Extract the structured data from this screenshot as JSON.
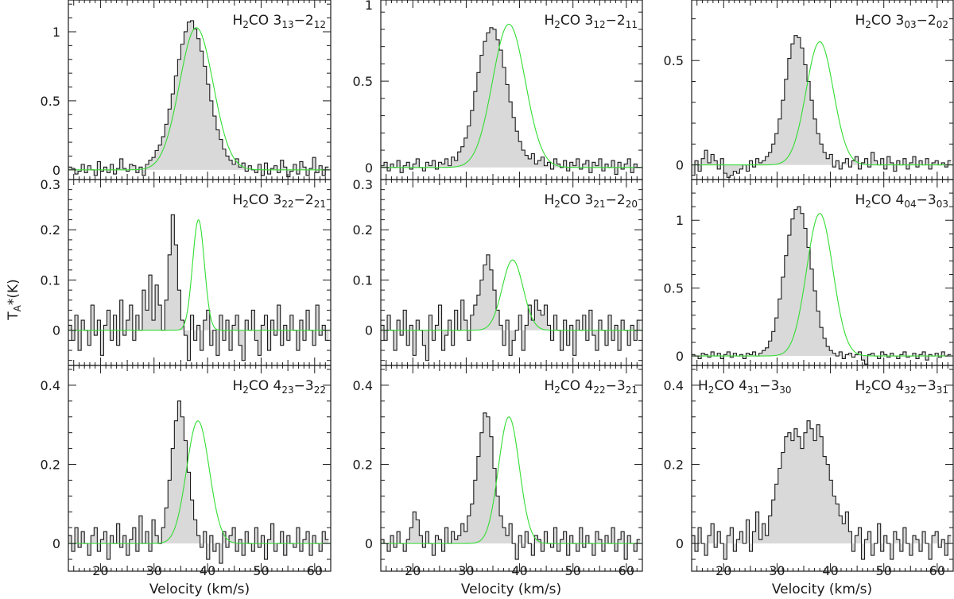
{
  "figure": {
    "ylabel": "T",
    "ylabel_sub": "A",
    "ylabel_tail": "*(K)",
    "xlabel": "Velocity (km/s)"
  },
  "colors": {
    "spectrum_fill": "#d9d9d9",
    "spectrum_line": "#1a1a1a",
    "fit": "#33dd33"
  },
  "chart_data": [
    {
      "type": "line",
      "title_main": "H2CO 313-212",
      "label": {
        "pre": "H",
        "s1": "2",
        "mid": "CO 3",
        "s2": "13",
        "dash": "−2",
        "s3": "12"
      },
      "xlim": [
        14,
        63
      ],
      "ylim": [
        -0.07,
        1.23
      ],
      "yticks": [
        0,
        0.5,
        1
      ],
      "ytick_labels": [
        "0",
        "0.5",
        "1"
      ],
      "xticks": [
        20,
        30,
        40,
        50,
        60
      ],
      "xtick_labels": [
        "",
        "",
        "",
        "",
        ""
      ],
      "fit": {
        "peak": 1.03,
        "center": 37.9,
        "fwhm": 7.4
      },
      "spectrum": {
        "x0": 14,
        "dx": 0.6,
        "y": [
          0.02,
          0.01,
          -0.03,
          -0.01,
          0.04,
          -0.02,
          0.03,
          0.0,
          -0.04,
          0.06,
          -0.01,
          0.02,
          -0.02,
          0.04,
          -0.03,
          0.01,
          0.08,
          0.01,
          -0.01,
          0.04,
          0.03,
          -0.02,
          0.02,
          -0.04,
          0.04,
          0.07,
          0.09,
          0.14,
          0.18,
          0.24,
          0.33,
          0.44,
          0.55,
          0.68,
          0.8,
          0.91,
          1.0,
          1.07,
          1.08,
          1.02,
          0.95,
          0.86,
          0.75,
          0.62,
          0.5,
          0.39,
          0.29,
          0.22,
          0.15,
          0.1,
          0.07,
          0.04,
          0.08,
          0.02,
          0.05,
          -0.01,
          0.03,
          0.0,
          -0.02,
          0.04,
          -0.04,
          0.05,
          -0.03,
          0.01,
          0.03,
          -0.02,
          0.07,
          0.02,
          -0.05,
          -0.01,
          0.04,
          -0.03,
          0.06,
          0.02,
          -0.04,
          0.01,
          0.09,
          -0.02,
          0.03,
          -0.04,
          0.02
        ]
      }
    },
    {
      "type": "line",
      "title_main": "H2CO 312-211",
      "label": {
        "pre": "H",
        "s1": "2",
        "mid": "CO 3",
        "s2": "12",
        "dash": "−2",
        "s3": "11"
      },
      "xlim": [
        14,
        63
      ],
      "ylim": [
        -0.07,
        0.97
      ],
      "yticks": [
        0,
        0.5,
        1
      ],
      "ytick_labels": [
        "0",
        "0.5",
        "1"
      ],
      "xticks": [
        20,
        30,
        40,
        50,
        60
      ],
      "xtick_labels": [
        "",
        "",
        "",
        "",
        ""
      ],
      "fit": {
        "peak": 0.83,
        "center": 38.0,
        "fwhm": 7.2
      },
      "spectrum": {
        "x0": 14,
        "dx": 0.6,
        "y": [
          0.01,
          0.03,
          -0.02,
          0.02,
          0.0,
          0.04,
          -0.03,
          0.01,
          0.03,
          -0.01,
          0.02,
          0.05,
          0.0,
          -0.02,
          0.03,
          0.01,
          0.04,
          -0.01,
          0.03,
          0.02,
          0.05,
          0.01,
          0.06,
          0.04,
          0.09,
          0.12,
          0.17,
          0.24,
          0.33,
          0.44,
          0.55,
          0.65,
          0.73,
          0.78,
          0.81,
          0.8,
          0.74,
          0.68,
          0.58,
          0.48,
          0.38,
          0.29,
          0.21,
          0.15,
          0.1,
          0.07,
          0.05,
          0.08,
          0.02,
          0.04,
          0.06,
          0.01,
          0.03,
          -0.01,
          0.05,
          0.02,
          0.0,
          0.04,
          -0.02,
          0.03,
          0.01,
          0.05,
          -0.01,
          0.02,
          0.04,
          -0.03,
          0.03,
          0.01,
          0.05,
          -0.02,
          0.02,
          0.0,
          0.04,
          -0.04,
          0.03,
          -0.01,
          0.02,
          0.05,
          -0.03,
          0.02,
          0.0
        ]
      }
    },
    {
      "type": "line",
      "title_main": "H2CO 303-202",
      "label": {
        "pre": "H",
        "s1": "2",
        "mid": "CO 3",
        "s2": "03",
        "dash": "−2",
        "s3": "02"
      },
      "xlim": [
        14,
        63
      ],
      "ylim": [
        -0.07,
        0.79
      ],
      "yticks": [
        0,
        0.5
      ],
      "ytick_labels": [
        "0",
        "0.5"
      ],
      "xticks": [
        20,
        30,
        40,
        50,
        60
      ],
      "xtick_labels": [
        "",
        "",
        "",
        "",
        ""
      ],
      "fit": {
        "peak": 0.59,
        "center": 38.0,
        "fwhm": 6.0
      },
      "spectrum": {
        "x0": 14,
        "dx": 0.6,
        "y": [
          -0.05,
          0.02,
          -0.03,
          0.03,
          0.07,
          0.01,
          0.05,
          0.02,
          -0.02,
          0.03,
          -0.04,
          -0.06,
          -0.05,
          -0.03,
          -0.04,
          -0.02,
          0.0,
          -0.03,
          0.02,
          -0.01,
          0.03,
          0.01,
          0.02,
          0.04,
          0.06,
          0.1,
          0.15,
          0.22,
          0.31,
          0.41,
          0.51,
          0.58,
          0.62,
          0.61,
          0.56,
          0.48,
          0.4,
          0.31,
          0.22,
          0.15,
          0.1,
          0.06,
          0.03,
          0.05,
          -0.01,
          0.02,
          -0.02,
          0.01,
          0.03,
          -0.01,
          0.02,
          0.04,
          -0.02,
          0.01,
          0.03,
          -0.01,
          0.06,
          0.02,
          0.0,
          0.03,
          -0.02,
          0.04,
          0.01,
          -0.03,
          0.02,
          0.0,
          0.03,
          -0.02,
          0.01,
          0.04,
          -0.01,
          0.02,
          0.0,
          0.03,
          -0.02,
          0.01,
          0.02,
          0.0,
          0.01,
          -0.01,
          0.02
        ]
      }
    },
    {
      "type": "line",
      "title_main": "H2CO 322-221",
      "label": {
        "pre": "H",
        "s1": "2",
        "mid": "CO 3",
        "s2": "22",
        "dash": "−2",
        "s3": "21"
      },
      "xlim": [
        14,
        63
      ],
      "ylim": [
        -0.07,
        0.3
      ],
      "yticks": [
        0,
        0.1,
        0.2,
        0.3
      ],
      "ytick_labels": [
        "0",
        "0.1",
        "0.2",
        "0.3"
      ],
      "xticks": [
        20,
        30,
        40,
        50,
        60
      ],
      "xtick_labels": [
        "",
        "",
        "",
        "",
        ""
      ],
      "fit": {
        "peak": 0.22,
        "center": 38.3,
        "fwhm": 2.6
      },
      "spectrum": {
        "x0": 14,
        "dx": 0.6,
        "y": [
          0.01,
          -0.02,
          0.03,
          -0.04,
          0.02,
          0.0,
          -0.03,
          0.05,
          -0.01,
          0.02,
          -0.05,
          0.01,
          0.04,
          -0.02,
          0.03,
          -0.03,
          0.06,
          -0.01,
          0.02,
          0.05,
          -0.02,
          0.03,
          0.0,
          0.08,
          0.04,
          0.11,
          0.02,
          0.09,
          0.05,
          0.0,
          0.06,
          0.15,
          0.23,
          0.17,
          0.08,
          0.02,
          -0.01,
          -0.06,
          0.03,
          -0.02,
          0.01,
          -0.04,
          0.02,
          0.04,
          -0.03,
          0.0,
          -0.05,
          0.03,
          -0.02,
          0.02,
          -0.04,
          0.01,
          0.03,
          -0.03,
          -0.06,
          0.02,
          0.0,
          0.04,
          -0.02,
          -0.05,
          0.01,
          0.03,
          -0.04,
          0.02,
          -0.01,
          0.05,
          -0.03,
          0.01,
          -0.02,
          0.03,
          0.0,
          -0.04,
          0.02,
          -0.02,
          0.04,
          0.0,
          -0.03,
          0.05,
          -0.01,
          0.01,
          -0.02
        ]
      }
    },
    {
      "type": "line",
      "title_main": "H2CO 321-220",
      "label": {
        "pre": "H",
        "s1": "2",
        "mid": "CO 3",
        "s2": "21",
        "dash": "−2",
        "s3": "20"
      },
      "xlim": [
        14,
        63
      ],
      "ylim": [
        -0.07,
        0.3
      ],
      "yticks": [
        0,
        0.1,
        0.2,
        0.3
      ],
      "ytick_labels": [
        "0",
        "0.1",
        "0.2",
        "0.3"
      ],
      "xticks": [
        20,
        30,
        40,
        50,
        60
      ],
      "xtick_labels": [
        "",
        "",
        "",
        "",
        ""
      ],
      "fit": {
        "peak": 0.14,
        "center": 38.7,
        "fwhm": 4.6
      },
      "spectrum": {
        "x0": 14,
        "dx": 0.6,
        "y": [
          0.01,
          -0.02,
          0.03,
          0.0,
          -0.04,
          0.02,
          -0.01,
          0.04,
          -0.03,
          0.01,
          -0.05,
          0.02,
          0.0,
          -0.03,
          -0.06,
          0.03,
          -0.02,
          0.01,
          0.05,
          -0.04,
          -0.01,
          0.02,
          -0.03,
          0.04,
          0.0,
          0.06,
          0.02,
          -0.02,
          0.03,
          0.05,
          0.07,
          0.1,
          0.13,
          0.15,
          0.12,
          0.08,
          0.04,
          0.01,
          -0.03,
          0.02,
          -0.05,
          -0.02,
          0.0,
          0.03,
          -0.04,
          0.01,
          0.05,
          0.02,
          0.06,
          0.04,
          0.03,
          0.05,
          0.01,
          -0.02,
          0.03,
          0.0,
          -0.04,
          0.02,
          -0.03,
          0.01,
          -0.05,
          0.02,
          0.0,
          0.03,
          -0.02,
          0.04,
          -0.01,
          -0.04,
          0.02,
          0.0,
          -0.03,
          0.03,
          -0.02,
          0.01,
          -0.04,
          0.02,
          0.0,
          -0.03,
          0.01,
          -0.02,
          0.02
        ]
      }
    },
    {
      "type": "line",
      "title_main": "H2CO 404-303",
      "label": {
        "pre": "H",
        "s1": "2",
        "mid": "CO 4",
        "s2": "04",
        "dash": "−3",
        "s3": "03"
      },
      "xlim": [
        14,
        63
      ],
      "ylim": [
        -0.07,
        1.3
      ],
      "yticks": [
        0,
        0.5,
        1
      ],
      "ytick_labels": [
        "0",
        "0.5",
        "1"
      ],
      "xticks": [
        20,
        30,
        40,
        50,
        60
      ],
      "xtick_labels": [
        "",
        "",
        "",
        "",
        ""
      ],
      "fit": {
        "peak": 1.05,
        "center": 38.0,
        "fwhm": 5.8
      },
      "spectrum": {
        "x0": 14,
        "dx": 0.6,
        "y": [
          0.01,
          0.0,
          -0.02,
          0.02,
          0.01,
          -0.01,
          0.03,
          0.0,
          0.02,
          -0.02,
          0.01,
          0.03,
          -0.01,
          0.02,
          0.0,
          0.01,
          -0.02,
          0.02,
          0.01,
          0.03,
          0.0,
          0.02,
          0.04,
          0.06,
          0.11,
          0.18,
          0.28,
          0.42,
          0.58,
          0.74,
          0.89,
          1.01,
          1.08,
          1.1,
          1.05,
          0.94,
          0.8,
          0.64,
          0.48,
          0.33,
          0.21,
          0.13,
          0.07,
          0.04,
          0.02,
          0.0,
          0.03,
          -0.02,
          0.01,
          0.02,
          -0.01,
          0.01,
          0.03,
          -0.03,
          -0.06,
          0.01,
          0.02,
          0.0,
          -0.02,
          0.03,
          0.01,
          -0.01,
          0.02,
          0.0,
          -0.02,
          0.01,
          0.03,
          -0.01,
          0.0,
          0.02,
          -0.02,
          0.01,
          0.03,
          -0.03,
          0.01,
          0.0,
          0.02,
          -0.01,
          0.03,
          0.0,
          0.01
        ]
      }
    },
    {
      "type": "line",
      "title_main": "H2CO 423-322",
      "label": {
        "pre": "H",
        "s1": "2",
        "mid": "CO 4",
        "s2": "23",
        "dash": "−3",
        "s3": "22"
      },
      "xlim": [
        14,
        63
      ],
      "ylim": [
        -0.07,
        0.45
      ],
      "yticks": [
        0,
        0.2,
        0.4
      ],
      "ytick_labels": [
        "0",
        "0.2",
        "0.4"
      ],
      "xticks": [
        20,
        30,
        40,
        50,
        60
      ],
      "xtick_labels": [
        "20",
        "30",
        "40",
        "50",
        "60"
      ],
      "fit": {
        "peak": 0.31,
        "center": 38.2,
        "fwhm": 5.0
      },
      "spectrum": {
        "x0": 14,
        "dx": 0.6,
        "y": [
          0.02,
          -0.02,
          0.04,
          -0.01,
          0.03,
          0.0,
          -0.03,
          0.02,
          0.04,
          -0.02,
          0.01,
          0.03,
          -0.04,
          0.02,
          0.0,
          0.05,
          -0.01,
          0.02,
          -0.03,
          0.01,
          0.04,
          -0.02,
          0.07,
          0.0,
          0.03,
          -0.02,
          0.06,
          0.02,
          0.0,
          0.04,
          0.09,
          0.16,
          0.24,
          0.31,
          0.36,
          0.32,
          0.26,
          0.18,
          0.11,
          0.06,
          0.02,
          -0.01,
          0.03,
          -0.04,
          0.02,
          -0.02,
          0.0,
          -0.05,
          0.03,
          -0.01,
          0.02,
          0.04,
          -0.02,
          0.01,
          -0.03,
          0.03,
          0.0,
          -0.02,
          0.04,
          -0.01,
          0.02,
          -0.04,
          0.01,
          0.05,
          -0.02,
          0.0,
          0.03,
          -0.03,
          0.02,
          0.0,
          -0.01,
          0.04,
          -0.02,
          0.01,
          0.03,
          -0.03,
          0.02,
          0.0,
          -0.02,
          0.03,
          0.01
        ]
      }
    },
    {
      "type": "line",
      "title_main": "H2CO 422-321",
      "label": {
        "pre": "H",
        "s1": "2",
        "mid": "CO 4",
        "s2": "22",
        "dash": "−3",
        "s3": "21"
      },
      "xlim": [
        14,
        63
      ],
      "ylim": [
        -0.07,
        0.45
      ],
      "yticks": [
        0,
        0.2,
        0.4
      ],
      "ytick_labels": [
        "0",
        "0.2",
        "0.4"
      ],
      "xticks": [
        20,
        30,
        40,
        50,
        60
      ],
      "xtick_labels": [
        "20",
        "30",
        "40",
        "50",
        "60"
      ],
      "fit": {
        "peak": 0.32,
        "center": 38.0,
        "fwhm": 4.6
      },
      "spectrum": {
        "x0": 14,
        "dx": 0.6,
        "y": [
          0.01,
          0.0,
          -0.02,
          0.02,
          -0.01,
          0.03,
          0.0,
          -0.02,
          0.01,
          0.04,
          0.08,
          0.06,
          0.02,
          -0.01,
          0.03,
          0.0,
          -0.03,
          0.02,
          0.01,
          -0.02,
          0.04,
          0.0,
          0.03,
          0.01,
          0.02,
          0.05,
          0.03,
          0.07,
          0.1,
          0.16,
          0.22,
          0.28,
          0.33,
          0.32,
          0.27,
          0.19,
          0.12,
          0.07,
          0.04,
          0.02,
          0.05,
          0.0,
          -0.04,
          0.02,
          -0.01,
          0.03,
          0.0,
          -0.03,
          0.02,
          0.01,
          -0.02,
          0.03,
          0.0,
          -0.01,
          0.04,
          -0.02,
          0.01,
          0.03,
          -0.03,
          0.02,
          0.0,
          -0.02,
          0.04,
          -0.01,
          0.02,
          0.0,
          -0.03,
          0.03,
          0.01,
          -0.02,
          0.02,
          0.0,
          0.04,
          -0.02,
          0.01,
          0.03,
          -0.04,
          0.02,
          0.0,
          -0.02,
          0.01
        ]
      }
    },
    {
      "type": "line",
      "title_main": "H2CO 431-330 H2CO 432-331",
      "label": {
        "pre": "H",
        "s1": "2",
        "mid": "CO 4",
        "s2": "31",
        "dash": "−3",
        "s3": "30"
      },
      "label2": {
        "pre": "H",
        "s1": "2",
        "mid": "CO 4",
        "s2": "32",
        "dash": "−3",
        "s3": "31"
      },
      "xlim": [
        14,
        63
      ],
      "ylim": [
        -0.07,
        0.45
      ],
      "yticks": [
        0,
        0.2,
        0.4
      ],
      "ytick_labels": [
        "0",
        "0.2",
        "0.4"
      ],
      "xticks": [
        20,
        30,
        40,
        50,
        60
      ],
      "xtick_labels": [
        "20",
        "30",
        "40",
        "50",
        "60"
      ],
      "fit": null,
      "spectrum": {
        "x0": 14,
        "dx": 0.6,
        "y": [
          0.02,
          -0.02,
          0.04,
          0.0,
          -0.03,
          0.02,
          0.05,
          -0.01,
          0.03,
          0.0,
          -0.04,
          0.02,
          0.04,
          -0.02,
          0.01,
          0.03,
          0.0,
          0.06,
          -0.02,
          0.03,
          0.08,
          0.01,
          0.05,
          0.02,
          0.07,
          0.11,
          0.15,
          0.19,
          0.23,
          0.27,
          0.28,
          0.26,
          0.29,
          0.27,
          0.24,
          0.28,
          0.31,
          0.29,
          0.26,
          0.3,
          0.27,
          0.22,
          0.2,
          0.16,
          0.12,
          0.1,
          0.07,
          0.05,
          0.08,
          0.03,
          -0.02,
          0.02,
          0.04,
          -0.04,
          0.01,
          0.03,
          -0.03,
          0.0,
          0.05,
          -0.02,
          0.02,
          0.0,
          -0.04,
          0.03,
          0.01,
          -0.02,
          0.04,
          0.0,
          -0.03,
          0.02,
          0.01,
          -0.02,
          0.03,
          0.0,
          -0.04,
          0.02,
          0.03,
          -0.01,
          0.01,
          -0.03,
          0.02
        ]
      }
    }
  ]
}
